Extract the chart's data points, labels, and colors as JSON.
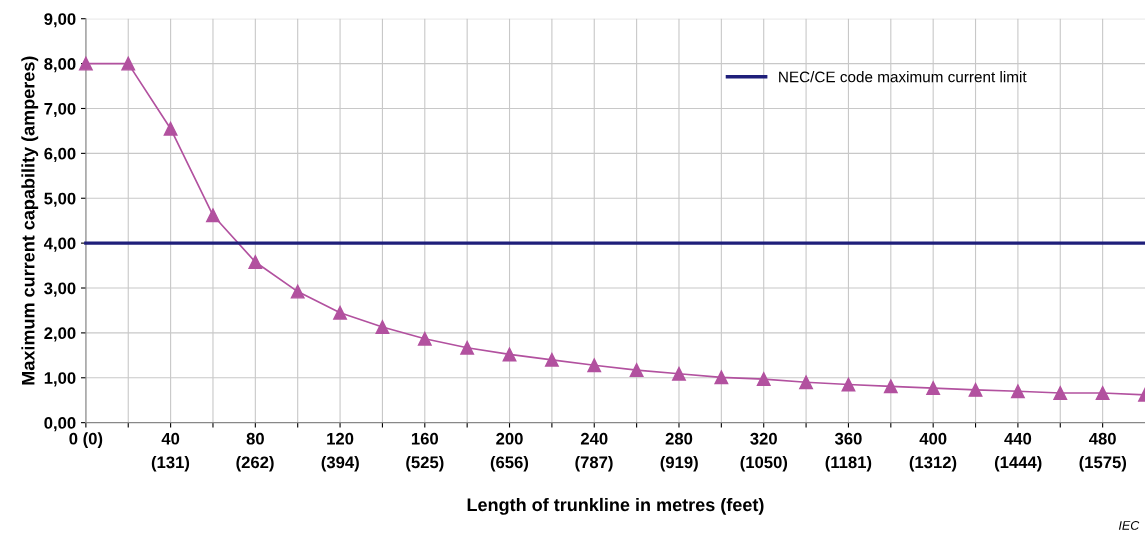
{
  "chart_data": {
    "type": "line",
    "xlabel": "Length of trunkline in metres (feet)",
    "ylabel": "Maximum current capability (amperes)",
    "series": [
      {
        "color": "#b2519f",
        "marker": "triangle",
        "x": [
          0,
          20,
          40,
          60,
          80,
          100,
          120,
          140,
          160,
          180,
          200,
          220,
          240,
          260,
          280,
          300,
          320,
          340,
          360,
          380,
          400,
          420,
          440,
          460,
          480,
          500
        ],
        "values": [
          8.0,
          8.0,
          6.55,
          4.62,
          3.58,
          2.92,
          2.45,
          2.13,
          1.87,
          1.67,
          1.52,
          1.4,
          1.28,
          1.17,
          1.09,
          1.01,
          0.97,
          0.9,
          0.85,
          0.81,
          0.77,
          0.73,
          0.7,
          0.66,
          0.66,
          0.62
        ]
      },
      {
        "name": "NEC/CE code maximum current limit",
        "color": "#1f1f7a",
        "marker": "none",
        "x": [
          0,
          500
        ],
        "values": [
          4.0,
          4.0
        ]
      }
    ],
    "xlim": [
      0,
      500
    ],
    "xticks": [
      {
        "value": 0,
        "label": "0 (0)"
      },
      {
        "value": 20,
        "label": null
      },
      40,
      {
        "value": 60,
        "label": null
      },
      80,
      {
        "value": 100,
        "label": null
      },
      120,
      {
        "value": 140,
        "label": null
      },
      160,
      {
        "value": 180,
        "label": null
      },
      200,
      {
        "value": 220,
        "label": null
      },
      240,
      {
        "value": 260,
        "label": null
      },
      280,
      {
        "value": 300,
        "label": null
      },
      320,
      {
        "value": 340,
        "label": null
      },
      360,
      {
        "value": 380,
        "label": null
      },
      400,
      {
        "value": 420,
        "label": null
      },
      440,
      {
        "value": 460,
        "label": null
      },
      480
    ],
    "x2lim": [
      0,
      1640.4
    ],
    "x2ticks": [
      {
        "value": 131,
        "label": "(131)"
      },
      {
        "value": 262,
        "label": "(262)"
      },
      {
        "value": 394,
        "label": "(394)"
      },
      {
        "value": 525,
        "label": "(525)"
      },
      {
        "value": 656,
        "label": "(656)"
      },
      {
        "value": 787,
        "label": "(787)"
      },
      {
        "value": 919,
        "label": "(919)"
      },
      {
        "value": 1050,
        "label": "(1050)"
      },
      {
        "value": 1181,
        "label": "(1181)"
      },
      {
        "value": 1312,
        "label": "(1312)"
      },
      {
        "value": 1444,
        "label": "(1444)"
      },
      {
        "value": 1575,
        "label": "(1575)"
      }
    ],
    "ylim": [
      0,
      9
    ],
    "yticks": [
      {
        "value": 0,
        "label": "0,00"
      },
      {
        "value": 1,
        "label": "1,00"
      },
      {
        "value": 2,
        "label": "2,00"
      },
      {
        "value": 3,
        "label": "3,00"
      },
      {
        "value": 4,
        "label": "4,00"
      },
      {
        "value": 5,
        "label": "5,00"
      },
      {
        "value": 6,
        "label": "6,00"
      },
      {
        "value": 7,
        "label": "7,00"
      },
      {
        "value": 8,
        "label": "8,00"
      },
      {
        "value": 9,
        "label": "9,00"
      }
    ],
    "grid": true,
    "legend": "top right",
    "line_style": "solid",
    "annotations": [
      "IEC"
    ]
  }
}
